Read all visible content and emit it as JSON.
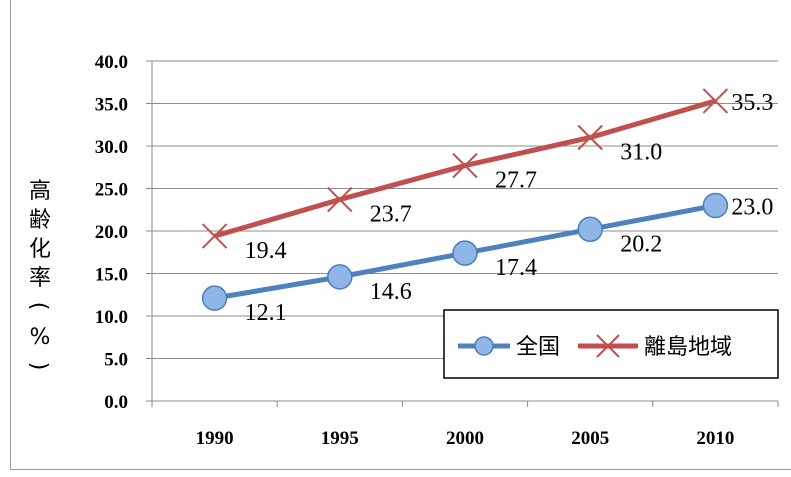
{
  "chart_data": {
    "type": "line",
    "categories": [
      "1990",
      "1995",
      "2000",
      "2005",
      "2010"
    ],
    "ylabel": "高齢化率（%）",
    "ylim": [
      0,
      40
    ],
    "yticks": [
      "0.0",
      "5.0",
      "10.0",
      "15.0",
      "20.0",
      "25.0",
      "30.0",
      "35.0",
      "40.0"
    ],
    "grid": "horizontal",
    "legend_position": "bottom-right",
    "series": [
      {
        "name": "全国",
        "values": [
          12.1,
          14.6,
          17.4,
          20.2,
          23.0
        ],
        "labels": [
          "12.1",
          "14.6",
          "17.4",
          "20.2",
          "23.0"
        ],
        "color": "#4f81bd",
        "marker": "circle"
      },
      {
        "name": "離島地域",
        "values": [
          19.4,
          23.7,
          27.7,
          31.0,
          35.3
        ],
        "labels": [
          "19.4",
          "23.7",
          "27.7",
          "31.0",
          "35.3"
        ],
        "color": "#c0504d",
        "marker": "x"
      }
    ]
  }
}
